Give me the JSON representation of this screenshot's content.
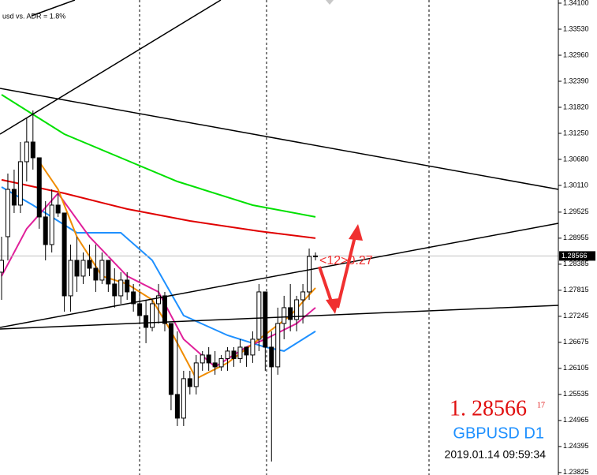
{
  "chart_data": {
    "type": "candlestick",
    "ylim": [
      1.23771,
      1.34169
    ],
    "yticks": [
      {
        "value": 1.341,
        "label": "1.34100"
      },
      {
        "value": 1.3353,
        "label": "1.33530"
      },
      {
        "value": 1.3296,
        "label": "1.32960"
      },
      {
        "value": 1.3239,
        "label": "1.32390"
      },
      {
        "value": 1.3182,
        "label": "1.31820"
      },
      {
        "value": 1.3125,
        "label": "1.31250"
      },
      {
        "value": 1.3068,
        "label": "1.30680"
      },
      {
        "value": 1.3011,
        "label": "1.30110"
      },
      {
        "value": 1.29525,
        "label": "1.29525"
      },
      {
        "value": 1.28955,
        "label": "1.28955"
      },
      {
        "value": 1.28385,
        "label": "1.28385"
      },
      {
        "value": 1.27815,
        "label": "1.27815"
      },
      {
        "value": 1.27245,
        "label": "1.27245"
      },
      {
        "value": 1.26675,
        "label": "1.26675"
      },
      {
        "value": 1.26105,
        "label": "1.26105"
      },
      {
        "value": 1.25535,
        "label": "1.25535"
      },
      {
        "value": 1.24965,
        "label": "1.24965"
      },
      {
        "value": 1.24395,
        "label": "1.24395"
      },
      {
        "value": 1.23825,
        "label": "1.23825"
      }
    ],
    "bid": {
      "value": 1.28566,
      "label": "1.28566"
    },
    "open": [
      1.28211,
      1.28988,
      1.30024,
      1.29679,
      1.30629,
      1.3106,
      1.30715,
      1.2942,
      1.28815,
      1.29679,
      1.29506,
      1.27693,
      1.2847,
      1.28125,
      1.2847,
      1.28297,
      1.28038,
      1.2847,
      1.27952,
      1.27693,
      1.28038,
      1.27779,
      1.2752,
      1.27261,
      1.27002,
      1.2752,
      1.27693,
      1.27088,
      1.25534,
      1.25016,
      1.2588,
      1.25707,
      1.26225,
      1.26398,
      1.26225,
      1.26139,
      1.2632,
      1.26484,
      1.2632,
      1.2657,
      1.26398,
      1.26743,
      1.27779,
      1.2657,
      1.26139,
      1.27088,
      1.27434,
      1.27175,
      1.27606,
      1.27779,
      1.28556
    ],
    "high": [
      1.28988,
      1.3037,
      1.30456,
      1.3106,
      1.31579,
      1.31751,
      1.30715,
      1.29765,
      1.30024,
      1.29938,
      1.29506,
      1.28815,
      1.28988,
      1.28643,
      1.28815,
      1.28815,
      1.28643,
      1.2847,
      1.28297,
      1.28211,
      1.28211,
      1.27952,
      1.27779,
      1.27606,
      1.27606,
      1.27952,
      1.27779,
      1.27088,
      1.26916,
      1.26052,
      1.26052,
      1.26398,
      1.26484,
      1.2657,
      1.26484,
      1.26398,
      1.2657,
      1.2657,
      1.26743,
      1.2657,
      1.26916,
      1.27952,
      1.27779,
      1.26916,
      1.27434,
      1.27693,
      1.27952,
      1.27693,
      1.27952,
      1.28729,
      1.28643
    ],
    "low": [
      1.27606,
      1.2847,
      1.29506,
      1.29506,
      1.30197,
      1.30456,
      1.29161,
      1.2847,
      1.28643,
      1.2942,
      1.27347,
      1.27347,
      1.27779,
      1.27952,
      1.28125,
      1.27779,
      1.27952,
      1.27779,
      1.27434,
      1.2752,
      1.27606,
      1.27347,
      1.27088,
      1.26657,
      1.26916,
      1.27088,
      1.26916,
      1.25189,
      1.24843,
      1.24843,
      1.25534,
      1.25534,
      1.26052,
      1.26052,
      1.25966,
      1.26052,
      1.26052,
      1.26139,
      1.26225,
      1.26139,
      1.26225,
      1.26484,
      1.26052,
      1.24066,
      1.25966,
      1.26743,
      1.26916,
      1.26916,
      1.27088,
      1.27606,
      1.2847
    ],
    "close": [
      1.2847,
      1.30024,
      1.29679,
      1.30629,
      1.3106,
      1.30715,
      1.2942,
      1.28815,
      1.29679,
      1.29506,
      1.27693,
      1.2847,
      1.28125,
      1.2847,
      1.28297,
      1.28038,
      1.2847,
      1.27952,
      1.27693,
      1.28038,
      1.27779,
      1.2752,
      1.27261,
      1.27002,
      1.2752,
      1.27693,
      1.27088,
      1.25534,
      1.25016,
      1.2588,
      1.25707,
      1.26225,
      1.26398,
      1.26225,
      1.26139,
      1.2632,
      1.26484,
      1.2632,
      1.2657,
      1.26398,
      1.26743,
      1.27779,
      1.2657,
      1.26139,
      1.27088,
      1.27434,
      1.27175,
      1.27606,
      1.27779,
      1.28556,
      1.28566
    ],
    "series": [
      {
        "color": "#00e000",
        "x": [
          0,
          4,
          10,
          19,
          28,
          40,
          50
        ],
        "values": [
          1.32097,
          1.31751,
          1.31233,
          1.30715,
          1.30197,
          1.29679,
          1.2942
        ]
      },
      {
        "color": "#e00000",
        "x": [
          0,
          10,
          20,
          30,
          41,
          50
        ],
        "values": [
          1.30232,
          1.29938,
          1.29593,
          1.29333,
          1.29109,
          1.28954
        ]
      },
      {
        "color": "#1e90ff",
        "x": [
          0,
          5,
          12,
          19,
          24,
          29,
          36,
          42,
          45,
          50
        ],
        "values": [
          1.30076,
          1.29679,
          1.29074,
          1.29074,
          1.2847,
          1.27261,
          1.26829,
          1.2657,
          1.26484,
          1.26916
        ]
      },
      {
        "color": "#e0209a",
        "x": [
          0,
          4,
          9,
          14,
          20,
          25,
          29,
          34,
          39,
          42,
          47,
          50
        ],
        "values": [
          1.28125,
          1.29161,
          1.29938,
          1.28988,
          1.28125,
          1.27779,
          1.26743,
          1.26139,
          1.2657,
          1.26743,
          1.27088,
          1.27434
        ]
      },
      {
        "color": "#f08c00",
        "x": [
          6,
          9,
          12,
          16,
          20,
          24,
          27,
          31,
          36,
          41,
          46,
          50
        ],
        "values": [
          1.30629,
          1.30024,
          1.28988,
          1.28125,
          1.27952,
          1.27606,
          1.26916,
          1.2588,
          1.26225,
          1.26743,
          1.27261,
          1.27866
        ]
      }
    ]
  },
  "overlay": {
    "adr": "usd vs. ADR = 1.8%",
    "signal": "<12>0.27",
    "price": "1. 28566",
    "pips": "17",
    "symbol": "GBPUSD D1",
    "time": "2019.01.14 09:59:34"
  }
}
